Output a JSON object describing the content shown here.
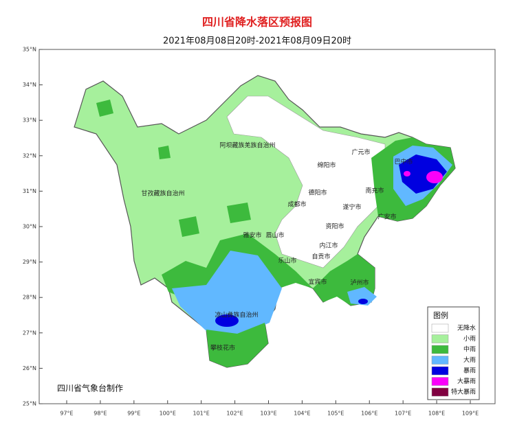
{
  "header": {
    "title": "四川省降水落区预报图",
    "subtitle": "2021年08月08日20时-2021年08月09日20时"
  },
  "axes": {
    "lat_ticks": [
      {
        "value": 35,
        "label": "35°N"
      },
      {
        "value": 34,
        "label": "34°N"
      },
      {
        "value": 33,
        "label": "33°N"
      },
      {
        "value": 32,
        "label": "32°N"
      },
      {
        "value": 31,
        "label": "31°N"
      },
      {
        "value": 30,
        "label": "30°N"
      },
      {
        "value": 29,
        "label": "29°N"
      },
      {
        "value": 28,
        "label": "28°N"
      },
      {
        "value": 27,
        "label": "27°N"
      },
      {
        "value": 26,
        "label": "26°N"
      },
      {
        "value": 25,
        "label": "25°N"
      }
    ],
    "lon_ticks": [
      {
        "value": 97,
        "label": "97°E"
      },
      {
        "value": 98,
        "label": "98°E"
      },
      {
        "value": 99,
        "label": "99°E"
      },
      {
        "value": 100,
        "label": "100°E"
      },
      {
        "value": 101,
        "label": "101°E"
      },
      {
        "value": 102,
        "label": "102°E"
      },
      {
        "value": 103,
        "label": "103°E"
      },
      {
        "value": 104,
        "label": "104°E"
      },
      {
        "value": 105,
        "label": "105°E"
      },
      {
        "value": 106,
        "label": "106°E"
      },
      {
        "value": 107,
        "label": "107°E"
      },
      {
        "value": 108,
        "label": "108°E"
      },
      {
        "value": 109,
        "label": "109°E"
      }
    ]
  },
  "places": [
    "阿坝藏族羌族自治州",
    "甘孜藏族自治州",
    "凉山彝族自治州",
    "攀枝花市",
    "雅安市",
    "眉山市",
    "乐山市",
    "成都市",
    "绵阳市",
    "德阳市",
    "广元市",
    "巴中市",
    "南充市",
    "遂宁市",
    "资阳市",
    "内江市",
    "自贡市",
    "宜宾市",
    "泸州市",
    "广安市"
  ],
  "legend": {
    "title": "图例",
    "items": [
      {
        "label": "无降水",
        "color": "#ffffff"
      },
      {
        "label": "小雨",
        "color": "#a6f09c"
      },
      {
        "label": "中雨",
        "color": "#3dba3d"
      },
      {
        "label": "大雨",
        "color": "#61b8ff"
      },
      {
        "label": "暴雨",
        "color": "#0000e0"
      },
      {
        "label": "大暴雨",
        "color": "#fa00fa"
      },
      {
        "label": "特大暴雨",
        "color": "#800040"
      }
    ]
  },
  "credit": "四川省气象台制作"
}
